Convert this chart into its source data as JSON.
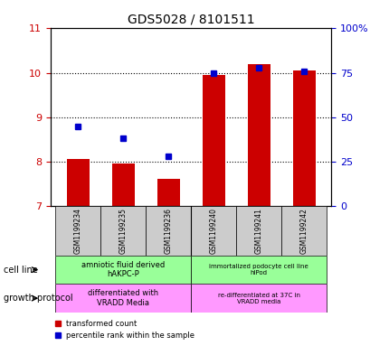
{
  "title": "GDS5028 / 8101511",
  "samples": [
    "GSM1199234",
    "GSM1199235",
    "GSM1199236",
    "GSM1199240",
    "GSM1199241",
    "GSM1199242"
  ],
  "transformed_counts": [
    8.05,
    7.95,
    7.6,
    9.95,
    10.2,
    10.05
  ],
  "percentile_ranks": [
    45,
    38,
    28,
    75,
    78,
    76
  ],
  "ylim_left": [
    7,
    11
  ],
  "ylim_right": [
    0,
    100
  ],
  "yticks_left": [
    7,
    8,
    9,
    10,
    11
  ],
  "yticks_right": [
    0,
    25,
    50,
    75,
    100
  ],
  "ytick_labels_right": [
    "0",
    "25",
    "50",
    "75",
    "100%"
  ],
  "bar_color": "#cc0000",
  "dot_color": "#0000cc",
  "cell_line_labels": [
    "amniotic fluid derived\nhAKPC-P",
    "immortalized podocyte cell line\nhIPod"
  ],
  "growth_protocol_labels": [
    "differentiated with\nVRADD Media",
    "re-differentiated at 37C in\nVRADD media"
  ],
  "cell_line_color": "#99ff99",
  "growth_protocol_color": "#ff99ff",
  "sample_bg_color": "#cccccc",
  "legend_bar_label": "transformed count",
  "legend_dot_label": "percentile rank within the sample",
  "left_axis_color": "#cc0000",
  "right_axis_color": "#0000cc",
  "group1_indices": [
    0,
    1,
    2
  ],
  "group2_indices": [
    3,
    4,
    5
  ]
}
